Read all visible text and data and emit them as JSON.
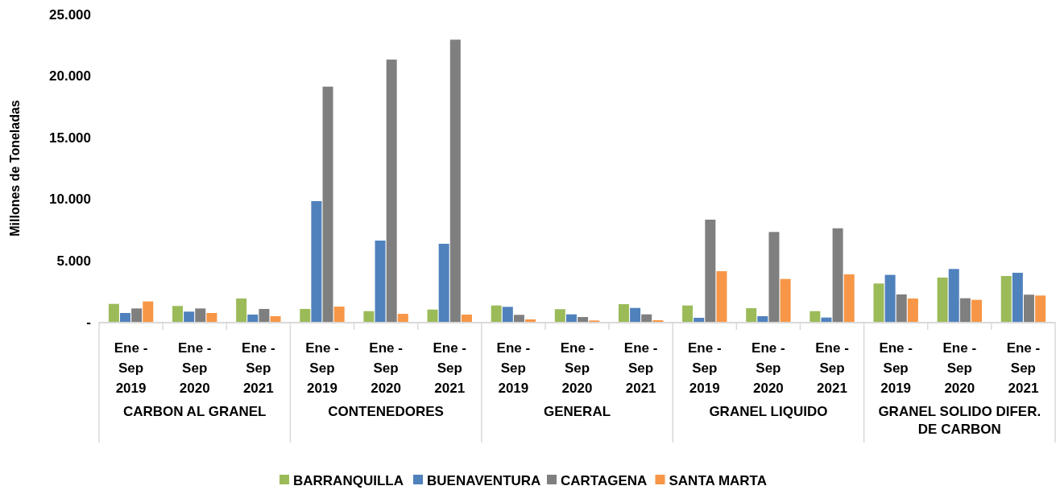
{
  "chart_data": {
    "type": "bar",
    "ylabel": "Millones de Toneladas",
    "categories": [
      "Ene - Sep 2019",
      "Ene - Sep 2020",
      "Ene - Sep 2021",
      "Ene - Sep 2019",
      "Ene - Sep 2020",
      "Ene - Sep 2021",
      "Ene - Sep 2019",
      "Ene - Sep 2020",
      "Ene - Sep 2021",
      "Ene - Sep 2019",
      "Ene - Sep 2020",
      "Ene - Sep 2021",
      "Ene - Sep 2019",
      "Ene - Sep 2020",
      "Ene - Sep 2021"
    ],
    "annotations": [
      "CARBON AL GRANEL",
      "CONTENEDORES",
      "GENERAL",
      "GRANEL LIQUIDO",
      "GRANEL SOLIDO DIFER. DE CARBON"
    ],
    "series": [
      {
        "name": "BARRANQUILLA",
        "color": "#9bbb59",
        "values": [
          1460,
          1290,
          1900,
          1050,
          870,
          1000,
          1330,
          1030,
          1440,
          1330,
          1110,
          870,
          3120,
          3600,
          3730
        ]
      },
      {
        "name": "BUENAVENTURA",
        "color": "#4f81bd",
        "values": [
          720,
          830,
          590,
          9820,
          6610,
          6350,
          1220,
          610,
          1130,
          330,
          460,
          350,
          3820,
          4300,
          3990
        ]
      },
      {
        "name": "CARTAGENA",
        "color": "#7f7f7f",
        "values": [
          1090,
          1090,
          1050,
          19130,
          21330,
          22950,
          570,
          390,
          610,
          8310,
          7310,
          7610,
          2230,
          1920,
          2210
        ]
      },
      {
        "name": "SANTA MARTA",
        "color": "#f79646",
        "values": [
          1660,
          720,
          460,
          1240,
          650,
          590,
          200,
          110,
          130,
          4120,
          3490,
          3860,
          1900,
          1790,
          2140
        ]
      }
    ],
    "ylim": [
      0,
      25000
    ],
    "yticks": [
      {
        "value": 0,
        "label": "-"
      },
      {
        "value": 5000,
        "label": "5.000"
      },
      {
        "value": 10000,
        "label": "10.000"
      },
      {
        "value": 15000,
        "label": "15.000"
      },
      {
        "value": 20000,
        "label": "20.000"
      },
      {
        "value": 25000,
        "label": "25.000"
      }
    ],
    "grid": false,
    "legend": "bottom"
  }
}
